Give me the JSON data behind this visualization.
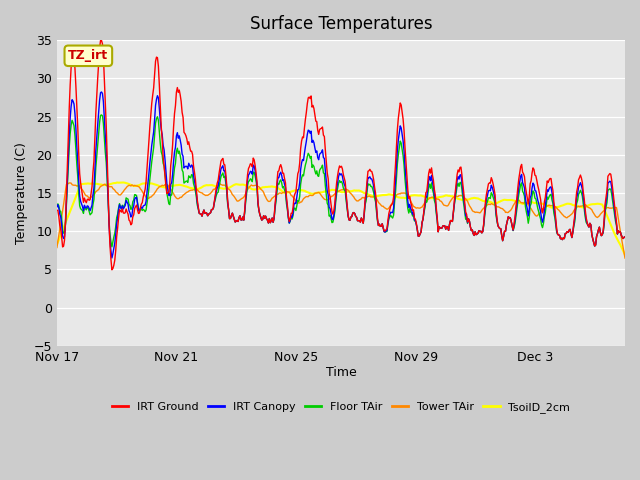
{
  "title": "Surface Temperatures",
  "ylabel": "Temperature (C)",
  "xlabel": "Time",
  "ylim": [
    -5,
    35
  ],
  "yticks": [
    -5,
    0,
    5,
    10,
    15,
    20,
    25,
    30,
    35
  ],
  "xtick_labels": [
    "Nov 17",
    "Nov 21",
    "Nov 25",
    "Nov 29",
    "Dec 3"
  ],
  "xtick_positions": [
    0,
    4,
    8,
    12,
    16
  ],
  "xlim": [
    0,
    19
  ],
  "legend_entries": [
    {
      "label": "IRT Ground",
      "color": "#ff0000"
    },
    {
      "label": "IRT Canopy",
      "color": "#0000ff"
    },
    {
      "label": "Floor TAir",
      "color": "#00cc00"
    },
    {
      "label": "Tower TAir",
      "color": "#ff8800"
    },
    {
      "label": "TsoilD_2cm",
      "color": "#ffff00"
    }
  ],
  "annotation_text": "TZ_irt",
  "annotation_color": "#cc0000",
  "annotation_bg": "#ffffcc",
  "annotation_border": "#aaaa00",
  "fig_bg": "#cccccc",
  "ax_bg": "#e8e8e8",
  "grid_color": "#ffffff"
}
